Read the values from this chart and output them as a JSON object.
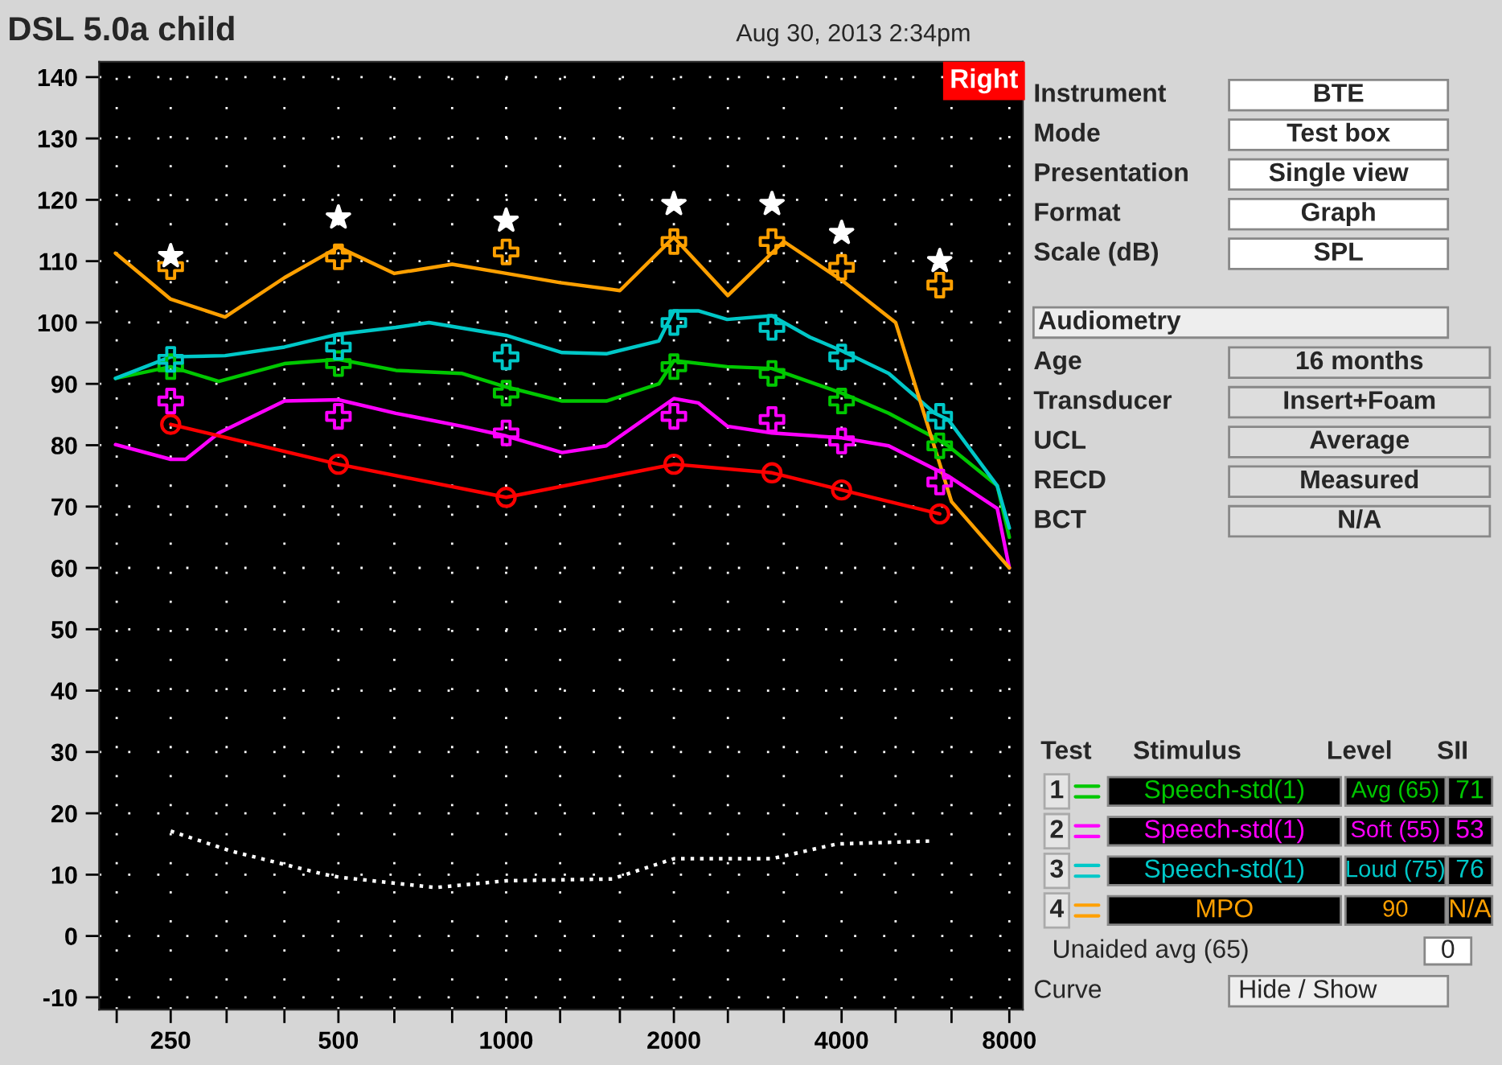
{
  "chart_data": {
    "type": "line",
    "title": "DSL 5.0a child",
    "subtitle": "Aug 30, 2013 2:34pm",
    "annotations": [
      "Right",
      "Instrument",
      "BTE",
      "Mode",
      "Test box",
      "Presentation",
      "Single view",
      "Format",
      "Graph",
      "Scale (dB)",
      "SPL",
      "Audiometry",
      "Age",
      "16 months",
      "Transducer",
      "Insert+Foam",
      "UCL",
      "Average",
      "RECD",
      "Measured",
      "BCT",
      "N/A",
      "Test",
      "Stimulus",
      "Level",
      "SII",
      "1",
      "Speech-std(1)",
      "Avg (65)",
      "71",
      "2",
      "Speech-std(1)",
      "Soft (55)",
      "53",
      "3",
      "Speech-std(1)",
      "Loud (75)",
      "76",
      "4",
      "MPO",
      "90",
      "N/A",
      "Unaided avg (65)",
      "0",
      "Curve",
      "Hide / Show"
    ],
    "log": "x",
    "grid": true,
    "xlim": [
      186,
      8460
    ],
    "ylim": [
      -12,
      142.5
    ],
    "xticks": [
      {
        "value": 200,
        "label": null
      },
      250,
      {
        "value": 315,
        "label": null
      },
      {
        "value": 400,
        "label": null
      },
      500,
      {
        "value": 630,
        "label": null
      },
      {
        "value": 800,
        "label": null
      },
      1000,
      {
        "value": 1250,
        "label": null
      },
      {
        "value": 1600,
        "label": null
      },
      2000,
      {
        "value": 2500,
        "label": null
      },
      {
        "value": 3150,
        "label": null
      },
      4000,
      {
        "value": 5000,
        "label": null
      },
      {
        "value": 6300,
        "label": null
      },
      8000
    ],
    "yticks": [
      -10,
      0,
      10,
      20,
      30,
      40,
      50,
      60,
      70,
      80,
      90,
      100,
      110,
      120,
      130,
      140
    ],
    "series": [
      {
        "type": "line",
        "color": "#00c800",
        "x": [
          199,
          250,
          305,
          400,
          500,
          634,
          832,
          1000,
          1260,
          1513,
          1880,
          2000,
          2493,
          2998,
          4000,
          4860,
          5880,
          6210,
          7610,
          8000
        ],
        "values": [
          90.9,
          92.8,
          90.4,
          93.3,
          94,
          92.2,
          91.7,
          89.5,
          87.2,
          87.2,
          90,
          93.8,
          92.8,
          92.5,
          88.5,
          85.2,
          81.2,
          79.9,
          73.4,
          65
        ]
      },
      {
        "type": "line",
        "color": "#ff00ff",
        "x": [
          199,
          250,
          266,
          305,
          400,
          500,
          634,
          832,
          1000,
          1260,
          1513,
          2000,
          2212,
          2493,
          2998,
          4000,
          4860,
          5880,
          6210,
          7610,
          8000
        ],
        "values": [
          80.1,
          77.7,
          77.7,
          82,
          87.2,
          87.4,
          85.2,
          83.1,
          81.5,
          78.8,
          79.9,
          87.6,
          86.9,
          83.1,
          82,
          81.2,
          79.9,
          76.1,
          75,
          69.7,
          60
        ]
      },
      {
        "type": "line",
        "color": "#00c8c8",
        "x": [
          199,
          250,
          313,
          400,
          500,
          634,
          727,
          1000,
          1260,
          1513,
          1880,
          2000,
          2212,
          2493,
          2998,
          3510,
          4000,
          4860,
          5880,
          6210,
          7610,
          8000
        ],
        "values": [
          90.9,
          94.4,
          94.6,
          96,
          98.1,
          99.2,
          100,
          97.9,
          95.1,
          94.9,
          97,
          101.9,
          101.9,
          100.5,
          101.1,
          97.6,
          95.4,
          91.7,
          85.2,
          84.2,
          73.4,
          66.5
        ]
      },
      {
        "type": "line",
        "color": "#ffa000",
        "x": [
          199,
          250,
          313,
          400,
          500,
          630,
          800,
          1000,
          1250,
          1600,
          2000,
          2500,
          3150,
          4000,
          5000,
          6300,
          8000
        ],
        "values": [
          111.3,
          103.8,
          100.9,
          107.3,
          112.3,
          108,
          109.5,
          108,
          106.5,
          105.2,
          113.9,
          104.4,
          113.2,
          106.9,
          100,
          70.8,
          60
        ]
      },
      {
        "type": "line",
        "color": "#ff0000",
        "marker": "circle",
        "x": [
          250,
          500,
          1000,
          2000,
          3000,
          4000,
          6000
        ],
        "values": [
          83.4,
          76.9,
          71.5,
          76.9,
          75.5,
          72.7,
          68.8
        ]
      },
      {
        "type": "scatter",
        "color": "#ffa000",
        "marker": "cross",
        "x": [
          250,
          500,
          1000,
          2000,
          3000,
          4000,
          6000
        ],
        "values": [
          109.1,
          110.7,
          111.5,
          113.2,
          113.2,
          109,
          106.1
        ]
      },
      {
        "type": "scatter",
        "color": "#00c800",
        "marker": "cross",
        "x": [
          250,
          500,
          1000,
          2000,
          3000,
          4000,
          6000
        ],
        "values": [
          92.8,
          93.3,
          88.5,
          92.8,
          91.7,
          87.2,
          79.9
        ]
      },
      {
        "type": "scatter",
        "color": "#ff00ff",
        "marker": "cross",
        "x": [
          250,
          500,
          1000,
          2000,
          3000,
          4000,
          6000
        ],
        "values": [
          87.2,
          84.7,
          82,
          84.7,
          84.2,
          80.7,
          74
        ]
      },
      {
        "type": "scatter",
        "color": "#00c8c8",
        "marker": "cross",
        "x": [
          250,
          500,
          1000,
          2000,
          3000,
          4000,
          6000
        ],
        "values": [
          94,
          96,
          94.4,
          100,
          99.2,
          94.4,
          84.7
        ]
      },
      {
        "type": "scatter",
        "color": "#ffffff",
        "marker": "star",
        "x": [
          250,
          500,
          1000,
          2000,
          3000,
          4000,
          6000
        ],
        "values": [
          110.8,
          117.1,
          116.6,
          119.3,
          119.3,
          114.6,
          110
        ]
      },
      {
        "type": "line",
        "color": "#ffffff",
        "line_style": "dotted",
        "x": [
          250,
          322,
          469,
          500,
          748,
          1000,
          1550,
          2000,
          2998,
          3920,
          5880
        ],
        "values": [
          17.1,
          13.8,
          10.1,
          9.6,
          7.9,
          9,
          9.3,
          12.6,
          12.6,
          15,
          15.5
        ]
      }
    ]
  }
}
